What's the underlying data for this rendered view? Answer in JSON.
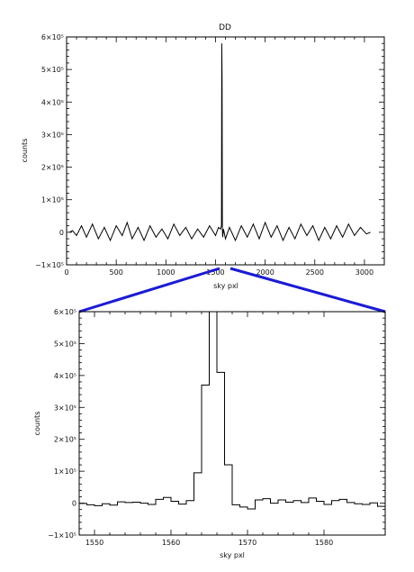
{
  "chart_data": [
    {
      "type": "line",
      "title": "DD",
      "xlabel": "sky pxl",
      "ylabel": "counts",
      "xlim": [
        0,
        3200
      ],
      "ylim": [
        -100000,
        600000
      ],
      "x_ticks": [
        {
          "value": 0,
          "label": "0"
        },
        {
          "value": 500,
          "label": "500"
        },
        {
          "value": 1000,
          "label": "1000"
        },
        {
          "value": 1500,
          "label": "1500"
        },
        {
          "value": 2000,
          "label": "2000"
        },
        {
          "value": 2500,
          "label": "2500"
        },
        {
          "value": 3000,
          "label": "3000"
        }
      ],
      "y_ticks": [
        {
          "value": -100000,
          "label": "−1×10⁵"
        },
        {
          "value": 0,
          "label": "0"
        },
        {
          "value": 100000,
          "label": "1×10⁵"
        },
        {
          "value": 200000,
          "label": "2×10⁵"
        },
        {
          "value": 300000,
          "label": "3×10⁵"
        },
        {
          "value": 400000,
          "label": "4×10⁵"
        },
        {
          "value": 500000,
          "label": "5×10⁵"
        },
        {
          "value": 600000,
          "label": "6×10⁵"
        }
      ],
      "series": [
        {
          "x": [
            30,
            60,
            100,
            150,
            200,
            260,
            320,
            380,
            440,
            500,
            560,
            610,
            660,
            720,
            780,
            840,
            900,
            960,
            1020,
            1080,
            1140,
            1200,
            1260,
            1320,
            1380,
            1440,
            1500,
            1530,
            1550,
            1560,
            1563,
            1566,
            1569,
            1572,
            1580,
            1600,
            1640,
            1700,
            1760,
            1820,
            1880,
            1940,
            2000,
            2060,
            2120,
            2180,
            2240,
            2300,
            2360,
            2420,
            2480,
            2540,
            2600,
            2660,
            2720,
            2780,
            2840,
            2900,
            2960,
            3020,
            3060
          ],
          "y": [
            0,
            5000,
            -10000,
            20000,
            -15000,
            25000,
            -20000,
            15000,
            -25000,
            20000,
            -10000,
            30000,
            -20000,
            15000,
            -25000,
            20000,
            -15000,
            10000,
            -20000,
            25000,
            -10000,
            15000,
            -20000,
            10000,
            -15000,
            20000,
            -10000,
            15000,
            10000,
            20000,
            580000,
            470000,
            10000,
            -15000,
            10000,
            -20000,
            15000,
            -25000,
            20000,
            -15000,
            25000,
            -20000,
            30000,
            -15000,
            20000,
            -25000,
            15000,
            -20000,
            25000,
            -10000,
            20000,
            -25000,
            15000,
            -20000,
            20000,
            -15000,
            25000,
            -10000,
            15000,
            -5000,
            0
          ]
        }
      ]
    },
    {
      "type": "line",
      "title": "",
      "xlabel": "sky pxl",
      "ylabel": "counts",
      "xlim": [
        1548,
        1588
      ],
      "ylim": [
        -100000,
        600000
      ],
      "x_ticks": [
        {
          "value": 1550,
          "label": "1550"
        },
        {
          "value": 1560,
          "label": "1560"
        },
        {
          "value": 1570,
          "label": "1570"
        },
        {
          "value": 1580,
          "label": "1580"
        }
      ],
      "y_ticks": [
        {
          "value": -100000,
          "label": "−1×10⁵"
        },
        {
          "value": 0,
          "label": "0"
        },
        {
          "value": 100000,
          "label": "1×10⁵"
        },
        {
          "value": 200000,
          "label": "2×10⁵"
        },
        {
          "value": 300000,
          "label": "3×10⁵"
        },
        {
          "value": 400000,
          "label": "4×10⁵"
        },
        {
          "value": 500000,
          "label": "5×10⁵"
        },
        {
          "value": 600000,
          "label": "6×10⁵"
        }
      ],
      "series": [
        {
          "x": [
            1548,
            1549,
            1550,
            1551,
            1552,
            1553,
            1554,
            1555,
            1556,
            1557,
            1558,
            1559,
            1560,
            1561,
            1562,
            1563,
            1564,
            1565,
            1566,
            1567,
            1568,
            1569,
            1570,
            1571,
            1572,
            1573,
            1574,
            1575,
            1576,
            1577,
            1578,
            1579,
            1580,
            1581,
            1582,
            1583,
            1584,
            1585,
            1586,
            1587
          ],
          "y": [
            -1000,
            -5000,
            -8000,
            -2000,
            -6000,
            4000,
            2000,
            3000,
            0,
            -4000,
            12000,
            18000,
            6000,
            -3000,
            8000,
            95000,
            370000,
            600000,
            410000,
            120000,
            -5000,
            -12000,
            -18000,
            10000,
            14000,
            0,
            10000,
            3000,
            8000,
            2000,
            16000,
            6000,
            -4000,
            8000,
            12000,
            2000,
            -2000,
            -4000,
            1000,
            -10000
          ]
        }
      ]
    }
  ]
}
